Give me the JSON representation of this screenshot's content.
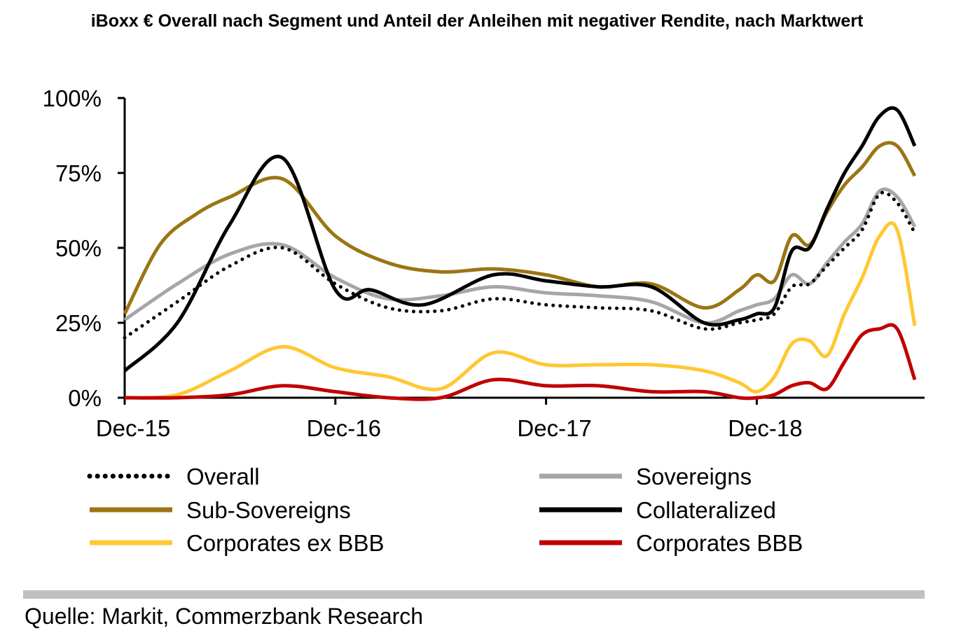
{
  "chart_data": {
    "type": "line",
    "title": "iBoxx € Overall nach Segment und Anteil der Anleihen mit negativer Rendite, nach Marktwert",
    "xlabel": "",
    "ylabel": "",
    "ylim": [
      0,
      100
    ],
    "yticks": [
      "0%",
      "25%",
      "50%",
      "75%",
      "100%"
    ],
    "ytick_values": [
      0,
      25,
      50,
      75,
      100
    ],
    "xlim": [
      0,
      45
    ],
    "xticks": [
      "Dec-15",
      "Dec-16",
      "Dec-17",
      "Dec-18"
    ],
    "xtick_values": [
      0,
      12,
      24,
      36
    ],
    "grid": false,
    "legend_position": "bottom",
    "series": [
      {
        "name": "Overall",
        "color": "#000000",
        "dash": "dotted",
        "x": [
          0,
          3,
          6,
          9,
          12,
          15,
          18,
          21,
          24,
          27,
          30,
          33,
          35,
          36,
          37,
          38,
          39,
          40,
          41,
          42,
          43,
          44,
          45
        ],
        "y": [
          20,
          32,
          44,
          50,
          38,
          30,
          29,
          33,
          31,
          30,
          29,
          23,
          25,
          26,
          28,
          37,
          38,
          44,
          50,
          56,
          68,
          65,
          55
        ]
      },
      {
        "name": "Sovereigns",
        "color": "#a6a6a6",
        "dash": "solid",
        "x": [
          0,
          3,
          6,
          9,
          12,
          15,
          18,
          21,
          24,
          27,
          30,
          33,
          35,
          36,
          37,
          38,
          39,
          40,
          41,
          42,
          43,
          44,
          45
        ],
        "y": [
          26,
          38,
          48,
          51,
          40,
          33,
          34,
          37,
          35,
          34,
          32,
          25,
          29,
          31,
          33,
          41,
          38,
          45,
          52,
          58,
          69,
          67,
          57
        ]
      },
      {
        "name": "Sub-Sovereigns",
        "color": "#9b7514",
        "dash": "solid",
        "x": [
          0,
          2,
          4,
          6,
          9,
          12,
          15,
          18,
          21,
          24,
          27,
          30,
          33,
          35,
          36,
          37,
          38,
          39,
          40,
          41,
          42,
          43,
          44,
          45
        ],
        "y": [
          28,
          51,
          61,
          67,
          73,
          54,
          45,
          42,
          43,
          41,
          37,
          38,
          30,
          36,
          41,
          39,
          54,
          51,
          62,
          71,
          77,
          84,
          84,
          74
        ]
      },
      {
        "name": "Collateralized",
        "color": "#000000",
        "dash": "solid",
        "x": [
          0,
          3,
          6,
          9,
          12,
          14,
          17,
          21,
          24,
          27,
          30,
          33,
          35,
          36,
          37,
          38,
          39,
          40,
          41,
          42,
          43,
          44,
          45
        ],
        "y": [
          9,
          25,
          58,
          80,
          36,
          36,
          31,
          41,
          39,
          37,
          37,
          25,
          26,
          28,
          30,
          49,
          50,
          63,
          75,
          84,
          94,
          96,
          84
        ]
      },
      {
        "name": "Corporates ex BBB",
        "color": "#ffc832",
        "dash": "solid",
        "x": [
          0,
          3,
          6,
          9,
          12,
          15,
          18,
          21,
          24,
          27,
          30,
          33,
          35,
          36,
          37,
          38,
          39,
          40,
          41,
          42,
          43,
          44,
          45
        ],
        "y": [
          0,
          1,
          9,
          17,
          10,
          7,
          3,
          15,
          11,
          11,
          11,
          9,
          5,
          2,
          7,
          18,
          19,
          14,
          28,
          40,
          54,
          56,
          24
        ]
      },
      {
        "name": "Corporates BBB",
        "color": "#c00000",
        "dash": "solid",
        "x": [
          0,
          3,
          6,
          9,
          12,
          15,
          18,
          21,
          24,
          27,
          30,
          33,
          35,
          36,
          37,
          38,
          39,
          40,
          41,
          42,
          43,
          44,
          45
        ],
        "y": [
          0,
          0,
          1,
          4,
          2,
          0,
          0,
          6,
          4,
          4,
          2,
          2,
          0,
          0,
          1,
          4,
          5,
          3,
          12,
          21,
          23,
          23,
          6
        ]
      }
    ]
  },
  "source": "Quelle: Markit, Commerzbank Research"
}
